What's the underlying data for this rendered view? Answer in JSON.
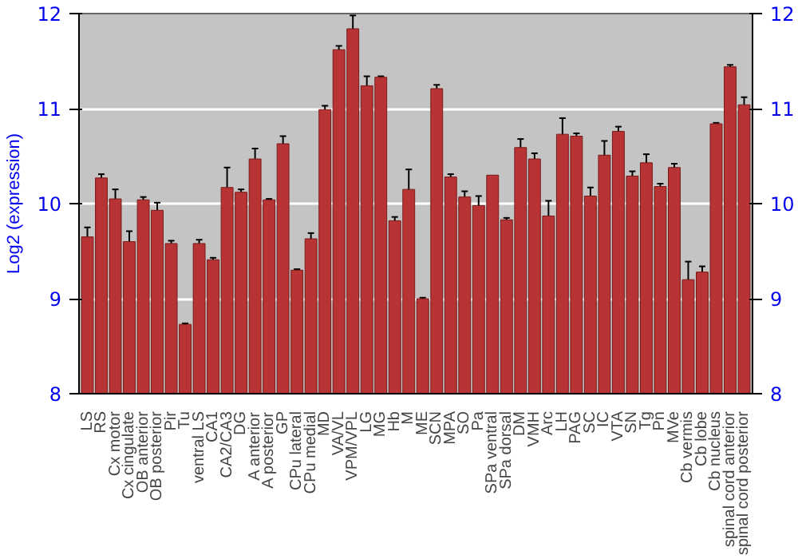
{
  "chart_data": {
    "type": "bar",
    "ylabel": "Log2 (expression)",
    "categories": [
      "LS",
      "RS",
      "Cx motor",
      "Cx cingulate",
      "OB anterior",
      "OB posterior",
      "Pir",
      "Tu",
      "ventral LS",
      "CA1",
      "CA2/CA3",
      "DG",
      "A anterior",
      "A posterior",
      "GP",
      "CPu lateral",
      "CPu medial",
      "MD",
      "VA/VL",
      "VPM/VPL",
      "LG",
      "MG",
      "Hb",
      "M",
      "ME",
      "SCN",
      "MPA",
      "SO",
      "Pa",
      "SPa ventral",
      "SPa dorsal",
      "DM",
      "VMH",
      "Arc",
      "LH",
      "PAG",
      "SC",
      "IC",
      "VTA",
      "SN",
      "Tg",
      "Pn",
      "MVe",
      "Cb vermis",
      "Cb lobe",
      "Cb nucleus",
      "spinal cord anterior",
      "spinal cord posterior"
    ],
    "values": [
      9.65,
      10.27,
      10.05,
      9.6,
      10.04,
      9.93,
      9.58,
      8.73,
      9.58,
      9.41,
      10.17,
      10.12,
      10.47,
      10.04,
      10.63,
      9.3,
      9.63,
      10.99,
      11.62,
      11.84,
      11.24,
      11.33,
      9.82,
      10.15,
      9.0,
      11.21,
      10.28,
      10.07,
      9.98,
      10.3,
      9.83,
      10.59,
      10.47,
      9.87,
      10.73,
      10.71,
      10.08,
      10.51,
      10.76,
      10.29,
      10.43,
      10.18,
      10.38,
      9.2,
      9.28,
      10.84,
      11.44,
      11.04
    ],
    "errors": [
      0.1,
      0.04,
      0.1,
      0.11,
      0.03,
      0.08,
      0.03,
      0.01,
      0.04,
      0.02,
      0.21,
      0.03,
      0.11,
      0.01,
      0.08,
      0.01,
      0.06,
      0.04,
      0.04,
      0.14,
      0.1,
      0.01,
      0.04,
      0.21,
      0.01,
      0.04,
      0.03,
      0.06,
      0.1,
      null,
      0.02,
      0.09,
      0.06,
      0.16,
      0.17,
      0.03,
      0.09,
      0.15,
      0.05,
      0.05,
      0.09,
      0.03,
      0.04,
      0.19,
      0.06,
      0.01,
      0.02,
      0.08
    ],
    "color": "#b83333",
    "ylim": [
      8,
      12
    ],
    "yticks": [
      8,
      9,
      10,
      11,
      12
    ],
    "y2lim": [
      8,
      12
    ],
    "y2ticks": [
      8,
      9,
      10,
      11,
      12
    ],
    "grid": "y"
  }
}
